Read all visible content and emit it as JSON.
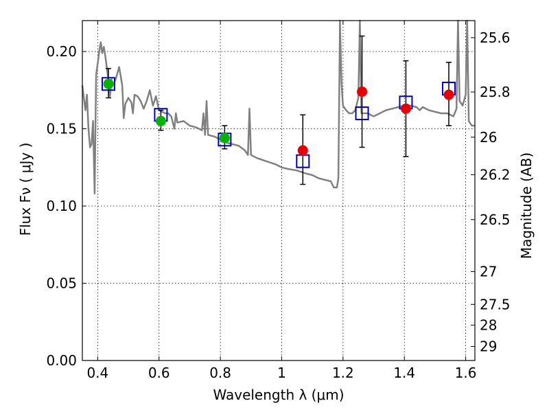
{
  "chart_data": {
    "type": "scatter",
    "title": "",
    "xlabel": "Wavelength  λ (μm)",
    "ylabel": "Flux  Fν  ( μJy )",
    "ylabel_right": "Magnitude (AB)",
    "xlim": [
      0.35,
      1.63
    ],
    "ylim": [
      0.0,
      0.22
    ],
    "grid": true,
    "legend": "none",
    "x_ticks": [
      {
        "value": 0.4,
        "label": "0.4"
      },
      {
        "value": 0.6,
        "label": "0.6"
      },
      {
        "value": 0.8,
        "label": "0.8"
      },
      {
        "value": 1.0,
        "label": "1"
      },
      {
        "value": 1.2,
        "label": "1.2"
      },
      {
        "value": 1.4,
        "label": "1.4"
      },
      {
        "value": 1.6,
        "label": "1.6"
      }
    ],
    "y_ticks": [
      {
        "value": 0.0,
        "label": "0.00"
      },
      {
        "value": 0.05,
        "label": "0.05"
      },
      {
        "value": 0.1,
        "label": "0.10"
      },
      {
        "value": 0.15,
        "label": "0.15"
      },
      {
        "value": 0.2,
        "label": "0.20"
      }
    ],
    "mag_ticks": [
      {
        "mag": 25.6,
        "label": "25.6"
      },
      {
        "mag": 25.8,
        "label": "25.8"
      },
      {
        "mag": 26.0,
        "label": "26"
      },
      {
        "mag": 26.2,
        "label": "26.2"
      },
      {
        "mag": 26.5,
        "label": "26.5"
      },
      {
        "mag": 27.0,
        "label": "27"
      },
      {
        "mag": 27.5,
        "label": "27.5"
      },
      {
        "mag": 28.0,
        "label": "28"
      },
      {
        "mag": 29.0,
        "label": "29"
      }
    ],
    "template_spectrum": {
      "color": "#808080",
      "points": [
        [
          0.35,
          0.178
        ],
        [
          0.355,
          0.17
        ],
        [
          0.36,
          0.162
        ],
        [
          0.365,
          0.172
        ],
        [
          0.37,
          0.15
        ],
        [
          0.375,
          0.138
        ],
        [
          0.38,
          0.14
        ],
        [
          0.385,
          0.155
        ],
        [
          0.39,
          0.108
        ],
        [
          0.395,
          0.185
        ],
        [
          0.4,
          0.192
        ],
        [
          0.405,
          0.2
        ],
        [
          0.41,
          0.206
        ],
        [
          0.415,
          0.199
        ],
        [
          0.42,
          0.203
        ],
        [
          0.425,
          0.197
        ],
        [
          0.43,
          0.189
        ],
        [
          0.435,
          0.181
        ],
        [
          0.44,
          0.171
        ],
        [
          0.445,
          0.182
        ],
        [
          0.45,
          0.178
        ],
        [
          0.46,
          0.183
        ],
        [
          0.47,
          0.19
        ],
        [
          0.475,
          0.184
        ],
        [
          0.48,
          0.178
        ],
        [
          0.485,
          0.157
        ],
        [
          0.49,
          0.166
        ],
        [
          0.5,
          0.17
        ],
        [
          0.51,
          0.167
        ],
        [
          0.515,
          0.16
        ],
        [
          0.52,
          0.172
        ],
        [
          0.53,
          0.171
        ],
        [
          0.54,
          0.168
        ],
        [
          0.55,
          0.163
        ],
        [
          0.56,
          0.168
        ],
        [
          0.57,
          0.175
        ],
        [
          0.58,
          0.165
        ],
        [
          0.59,
          0.171
        ],
        [
          0.6,
          0.162
        ],
        [
          0.61,
          0.161
        ],
        [
          0.62,
          0.16
        ],
        [
          0.63,
          0.16
        ],
        [
          0.64,
          0.158
        ],
        [
          0.65,
          0.15
        ],
        [
          0.655,
          0.16
        ],
        [
          0.66,
          0.154
        ],
        [
          0.68,
          0.155
        ],
        [
          0.7,
          0.152
        ],
        [
          0.72,
          0.151
        ],
        [
          0.74,
          0.149
        ],
        [
          0.745,
          0.16
        ],
        [
          0.75,
          0.146
        ],
        [
          0.755,
          0.168
        ],
        [
          0.76,
          0.146
        ],
        [
          0.78,
          0.145
        ],
        [
          0.8,
          0.143
        ],
        [
          0.82,
          0.141
        ],
        [
          0.84,
          0.14
        ],
        [
          0.86,
          0.139
        ],
        [
          0.88,
          0.136
        ],
        [
          0.89,
          0.133
        ],
        [
          0.895,
          0.163
        ],
        [
          0.9,
          0.133
        ],
        [
          0.92,
          0.131
        ],
        [
          0.95,
          0.129
        ],
        [
          0.98,
          0.127
        ],
        [
          1.0,
          0.125
        ],
        [
          1.02,
          0.124
        ],
        [
          1.05,
          0.123
        ],
        [
          1.08,
          0.121
        ],
        [
          1.1,
          0.12
        ],
        [
          1.12,
          0.118
        ],
        [
          1.14,
          0.117
        ],
        [
          1.16,
          0.116
        ],
        [
          1.17,
          0.112
        ],
        [
          1.18,
          0.112
        ],
        [
          1.185,
          0.118
        ],
        [
          1.19,
          0.22
        ],
        [
          1.195,
          0.18
        ],
        [
          1.2,
          0.165
        ],
        [
          1.21,
          0.162
        ],
        [
          1.22,
          0.16
        ],
        [
          1.23,
          0.16
        ],
        [
          1.24,
          0.162
        ],
        [
          1.25,
          0.17
        ],
        [
          1.255,
          0.22
        ],
        [
          1.26,
          0.16
        ],
        [
          1.27,
          0.16
        ],
        [
          1.28,
          0.16
        ],
        [
          1.3,
          0.158
        ],
        [
          1.32,
          0.16
        ],
        [
          1.34,
          0.162
        ],
        [
          1.36,
          0.163
        ],
        [
          1.38,
          0.164
        ],
        [
          1.4,
          0.165
        ],
        [
          1.42,
          0.165
        ],
        [
          1.44,
          0.164
        ],
        [
          1.45,
          0.162
        ],
        [
          1.46,
          0.164
        ],
        [
          1.48,
          0.162
        ],
        [
          1.5,
          0.161
        ],
        [
          1.52,
          0.16
        ],
        [
          1.54,
          0.16
        ],
        [
          1.56,
          0.158
        ],
        [
          1.57,
          0.163
        ],
        [
          1.575,
          0.22
        ],
        [
          1.58,
          0.168
        ],
        [
          1.59,
          0.165
        ],
        [
          1.6,
          0.172
        ],
        [
          1.605,
          0.22
        ],
        [
          1.61,
          0.155
        ],
        [
          1.62,
          0.152
        ],
        [
          1.63,
          0.152
        ]
      ]
    },
    "model_fluxes": {
      "color": "#0000cc",
      "points": [
        [
          0.435,
          0.179
        ],
        [
          0.606,
          0.159
        ],
        [
          0.814,
          0.143
        ],
        [
          1.069,
          0.129
        ],
        [
          1.262,
          0.16
        ],
        [
          1.405,
          0.167
        ],
        [
          1.545,
          0.176
        ]
      ]
    },
    "observations": [
      {
        "x": 0.435,
        "y": 0.179,
        "yerr_low": 0.17,
        "yerr_high": 0.189,
        "color": "#00b400"
      },
      {
        "x": 0.606,
        "y": 0.155,
        "yerr_low": 0.149,
        "yerr_high": 0.162,
        "color": "#00b400"
      },
      {
        "x": 0.814,
        "y": 0.144,
        "yerr_low": 0.137,
        "yerr_high": 0.152,
        "color": "#00b400"
      },
      {
        "x": 1.069,
        "y": 0.136,
        "yerr_low": 0.114,
        "yerr_high": 0.159,
        "color": "#e60000"
      },
      {
        "x": 1.262,
        "y": 0.174,
        "yerr_low": 0.138,
        "yerr_high": 0.21,
        "color": "#e60000"
      },
      {
        "x": 1.405,
        "y": 0.163,
        "yerr_low": 0.132,
        "yerr_high": 0.194,
        "color": "#e60000"
      },
      {
        "x": 1.545,
        "y": 0.172,
        "yerr_low": 0.152,
        "yerr_high": 0.193,
        "color": "#e60000"
      }
    ]
  }
}
